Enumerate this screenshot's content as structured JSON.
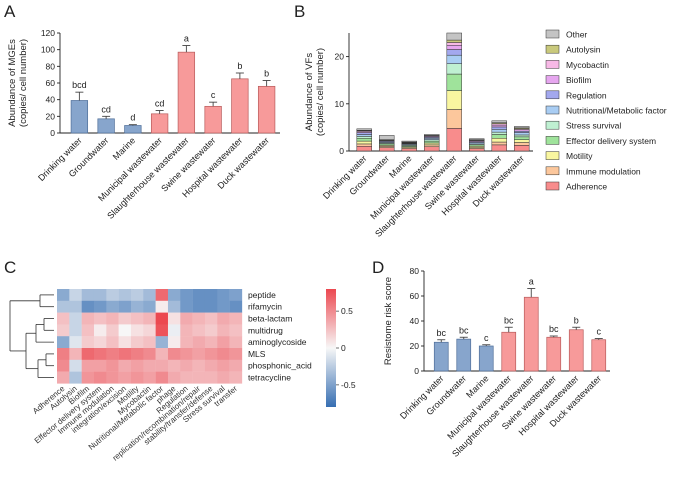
{
  "panels": {
    "A": "A",
    "B": "B",
    "C": "C",
    "D": "D"
  },
  "colors": {
    "blue": "#87a5cc",
    "blue_edge": "#4f6e99",
    "red": "#f79a9a",
    "red_edge": "#b85b5b",
    "error": "#444444"
  },
  "chart_data": [
    {
      "id": "A",
      "type": "bar",
      "ylabel_lines": [
        "Abundance of MGEs",
        "(copies/ cell number)"
      ],
      "ylim": [
        0,
        120
      ],
      "yticks": [
        0,
        20,
        40,
        60,
        80,
        100,
        120
      ],
      "categories": [
        "Drinking water",
        "Groundwater",
        "Marine",
        "Municipal wastewater",
        "Slaughterhouse wastewater",
        "Swine wastewater",
        "Hospital wastewater",
        "Duck wastewater"
      ],
      "values": [
        39,
        17,
        9,
        23,
        97,
        32,
        65,
        56
      ],
      "errors": [
        10,
        3,
        1,
        4,
        8,
        5,
        7,
        7
      ],
      "bar_colors": [
        "blue",
        "blue",
        "blue",
        "red",
        "red",
        "red",
        "red",
        "red"
      ],
      "letters": [
        "bcd",
        "cd",
        "d",
        "cd",
        "a",
        "c",
        "b",
        "b"
      ]
    },
    {
      "id": "B",
      "type": "bar",
      "stacked": true,
      "ylabel_lines": [
        "Abundance of VFs",
        "(copies/ cell number)"
      ],
      "ylim": [
        0,
        25
      ],
      "yticks": [
        0,
        10,
        20
      ],
      "categories": [
        "Drinking water",
        "Groundwater",
        "Marine",
        "Municipal wastewater",
        "Slaughterhouse wastewater",
        "Swine wastewater",
        "Hospital wastewater",
        "Duck wastewater"
      ],
      "legend_position": "right",
      "series": [
        {
          "name": "Adherence",
          "color": "#f88c8c",
          "values": [
            1.0,
            0.7,
            0.5,
            0.9,
            4.8,
            0.5,
            1.3,
            1.2
          ]
        },
        {
          "name": "Immune modulation",
          "color": "#fcc79c",
          "values": [
            0.5,
            0.3,
            0.2,
            0.4,
            4.0,
            0.2,
            0.6,
            0.6
          ]
        },
        {
          "name": "Motility",
          "color": "#f9f6a0",
          "values": [
            0.6,
            0.2,
            0.2,
            0.4,
            4.0,
            0.3,
            0.8,
            0.6
          ]
        },
        {
          "name": "Effector delivery system",
          "color": "#9fe39b",
          "values": [
            0.6,
            0.3,
            0.2,
            0.4,
            3.5,
            0.3,
            0.8,
            0.6
          ]
        },
        {
          "name": "Stress survival",
          "color": "#bff0d2",
          "values": [
            0.4,
            0.2,
            0.2,
            0.3,
            2.2,
            0.2,
            0.5,
            0.4
          ]
        },
        {
          "name": "Nutritional/Metabolic factor",
          "color": "#a9cdf3",
          "values": [
            0.4,
            0.2,
            0.2,
            0.3,
            1.8,
            0.3,
            0.6,
            0.5
          ]
        },
        {
          "name": "Regulation",
          "color": "#a3a8ee",
          "values": [
            0.4,
            0.2,
            0.1,
            0.2,
            1.2,
            0.2,
            0.5,
            0.3
          ]
        },
        {
          "name": "Biofilm",
          "color": "#e6a6ef",
          "values": [
            0.2,
            0.1,
            0.1,
            0.2,
            0.9,
            0.2,
            0.4,
            0.3
          ]
        },
        {
          "name": "Mycobactin",
          "color": "#f7b9e6",
          "values": [
            0.2,
            0.1,
            0.1,
            0.1,
            0.6,
            0.1,
            0.3,
            0.2
          ]
        },
        {
          "name": "Autolysin",
          "color": "#c9c97c",
          "values": [
            0.1,
            0.1,
            0.1,
            0.1,
            0.5,
            0.1,
            0.2,
            0.2
          ]
        },
        {
          "name": "Other",
          "color": "#c4c4c4",
          "values": [
            0.3,
            0.9,
            0.2,
            0.2,
            1.5,
            0.2,
            0.4,
            0.3
          ]
        }
      ]
    },
    {
      "id": "C",
      "type": "heatmap",
      "rows": [
        "peptide",
        "rifamycin",
        "beta-lactam",
        "multidrug",
        "aminoglycoside",
        "MLS",
        "phosphonic_acid",
        "tetracycline"
      ],
      "columns": [
        "Adherence",
        "Autolysin",
        "Biofilm",
        "Effector delivery system",
        "Immune modulation",
        "integration/excision",
        "Motility",
        "Mycobactin",
        "Nutritional/Metabolic factor",
        "phage",
        "Regulation",
        "replication/recombination/repair",
        "stability/transfer/defense",
        "Stress survival",
        "transfer"
      ],
      "values": [
        [
          -0.45,
          -0.2,
          -0.35,
          -0.35,
          -0.25,
          -0.3,
          -0.25,
          -0.35,
          0.65,
          -0.45,
          -0.55,
          -0.6,
          -0.6,
          -0.55,
          -0.5
        ],
        [
          -0.3,
          -0.3,
          -0.6,
          -0.55,
          -0.45,
          -0.5,
          -0.4,
          -0.45,
          0.05,
          -0.35,
          -0.55,
          -0.6,
          -0.6,
          -0.55,
          -0.6
        ],
        [
          0.25,
          -0.2,
          0.3,
          0.25,
          0.3,
          0.2,
          0.25,
          0.3,
          0.85,
          0.1,
          0.35,
          0.3,
          0.25,
          0.35,
          0.3
        ],
        [
          0.2,
          -0.2,
          0.25,
          0.05,
          0.2,
          0.0,
          0.1,
          0.15,
          0.75,
          -0.05,
          0.3,
          0.25,
          0.2,
          0.3,
          0.25
        ],
        [
          -0.45,
          -0.1,
          0.2,
          0.15,
          0.25,
          0.1,
          0.2,
          0.25,
          -0.4,
          0.05,
          0.3,
          0.35,
          0.3,
          0.4,
          0.3
        ],
        [
          0.55,
          0.3,
          0.65,
          0.6,
          0.55,
          0.6,
          0.55,
          0.5,
          0.3,
          0.5,
          0.45,
          0.4,
          0.45,
          0.5,
          0.45
        ],
        [
          0.5,
          -0.15,
          0.4,
          0.4,
          0.45,
          0.35,
          0.4,
          0.35,
          0.35,
          0.3,
          0.35,
          0.3,
          0.35,
          0.4,
          0.35
        ],
        [
          0.35,
          -0.3,
          0.45,
          0.5,
          0.45,
          0.4,
          0.45,
          0.4,
          0.5,
          0.35,
          0.3,
          0.3,
          0.3,
          0.35,
          0.3
        ]
      ],
      "colorbar_ticks": [
        "0.5",
        "0",
        "-0.5"
      ],
      "colorbar_tick_values": [
        0.5,
        0,
        -0.5
      ],
      "vmin": -0.8,
      "vmax": 0.8
    },
    {
      "id": "D",
      "type": "bar",
      "ylabel_lines": [
        "Resistome risk score"
      ],
      "ylim": [
        0,
        80
      ],
      "yticks": [
        0,
        20,
        40,
        60,
        80
      ],
      "categories": [
        "Drinking water",
        "Groundwater",
        "Marine",
        "Municipal wastewater",
        "Slaughterhouse wastewater",
        "Swine wastewater",
        "Hospital wastewater",
        "Duck wastewater"
      ],
      "values": [
        23,
        25.5,
        20,
        31,
        59,
        27,
        33,
        25
      ],
      "errors": [
        2,
        1.5,
        1,
        4,
        7,
        1,
        2,
        1
      ],
      "bar_colors": [
        "blue",
        "blue",
        "blue",
        "red",
        "red",
        "red",
        "red",
        "red"
      ],
      "letters": [
        "bc",
        "bc",
        "c",
        "bc",
        "a",
        "bc",
        "b",
        "c"
      ]
    }
  ]
}
